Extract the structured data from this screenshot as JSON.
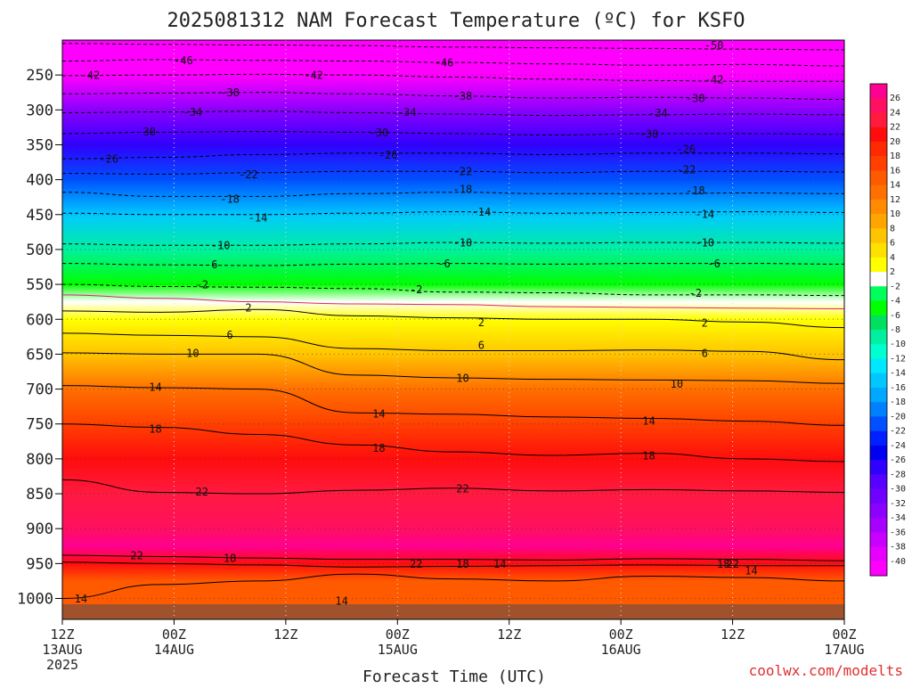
{
  "chart_data": {
    "type": "heatmap",
    "title": "2025081312 NAM Forecast Temperature (ºC) for KSFO",
    "xlabel": "Forecast Time (UTC)",
    "credit": "coolwx.com/modelts",
    "pressure_ticks": [
      250,
      300,
      350,
      400,
      450,
      500,
      550,
      600,
      650,
      700,
      750,
      800,
      850,
      900,
      950,
      1000
    ],
    "pressure_range": [
      200,
      1030
    ],
    "time_range_hours": [
      0,
      84
    ],
    "time_ticks": [
      {
        "hour": 0,
        "l1": "12Z",
        "l2": "13AUG",
        "l3": "2025"
      },
      {
        "hour": 12,
        "l1": "00Z",
        "l2": "14AUG",
        "l3": ""
      },
      {
        "hour": 24,
        "l1": "12Z",
        "l2": "",
        "l3": ""
      },
      {
        "hour": 36,
        "l1": "00Z",
        "l2": "15AUG",
        "l3": ""
      },
      {
        "hour": 48,
        "l1": "12Z",
        "l2": "",
        "l3": ""
      },
      {
        "hour": 60,
        "l1": "00Z",
        "l2": "16AUG",
        "l3": ""
      },
      {
        "hour": 72,
        "l1": "12Z",
        "l2": "",
        "l3": ""
      },
      {
        "hour": 84,
        "l1": "00Z",
        "l2": "17AUG",
        "l3": ""
      }
    ],
    "colorbar_labels": [
      "26",
      "24",
      "22",
      "20",
      "18",
      "16",
      "14",
      "12",
      "10",
      "8",
      "6",
      "4",
      "2",
      "-2",
      "-4",
      "-6",
      "-8",
      "-10",
      "-12",
      "-14",
      "-16",
      "-18",
      "-20",
      "-22",
      "-24",
      "-26",
      "-28",
      "-30",
      "-32",
      "-34",
      "-36",
      "-38",
      "-40"
    ],
    "colorbar_colors": [
      "#ff0090",
      "#ff1060",
      "#ff1a40",
      "#ff0d0d",
      "#ff2a00",
      "#ff4000",
      "#ff5a00",
      "#ff7000",
      "#ff8c00",
      "#ffa500",
      "#ffc400",
      "#ffe000",
      "#ffff00",
      "#ffffff",
      "#00ff5a",
      "#00ff00",
      "#00e060",
      "#00f0a0",
      "#00ffd0",
      "#00e8ff",
      "#00c8ff",
      "#00a8ff",
      "#0080ff",
      "#0050ff",
      "#0020ff",
      "#0000f0",
      "#3000ff",
      "#5800ff",
      "#7000ff",
      "#8c00ff",
      "#a800ff",
      "#c800ff",
      "#e800ff",
      "#ff00ff"
    ],
    "temperature_profile": [
      {
        "p": 200,
        "t": -56
      },
      {
        "p": 250,
        "t": -42
      },
      {
        "p": 300,
        "t": -33
      },
      {
        "p": 350,
        "t": -26
      },
      {
        "p": 400,
        "t": -20
      },
      {
        "p": 450,
        "t": -14
      },
      {
        "p": 500,
        "t": -9
      },
      {
        "p": 550,
        "t": -4
      },
      {
        "p": 575,
        "t": 0
      },
      {
        "p": 600,
        "t": 3
      },
      {
        "p": 650,
        "t": 7
      },
      {
        "p": 700,
        "t": 12
      },
      {
        "p": 750,
        "t": 16
      },
      {
        "p": 800,
        "t": 20
      },
      {
        "p": 850,
        "t": 23
      },
      {
        "p": 900,
        "t": 25
      },
      {
        "p": 925,
        "t": 26
      },
      {
        "p": 950,
        "t": 20
      },
      {
        "p": 975,
        "t": 15
      },
      {
        "p": 1000,
        "t": 14
      }
    ],
    "contours": [
      {
        "label": "-50",
        "dashed": true,
        "p": [
          205,
          206,
          207,
          208,
          210,
          211,
          212,
          213,
          214
        ],
        "labels_at": [
          [
            70,
            207
          ]
        ]
      },
      {
        "label": "-46",
        "dashed": true,
        "p": [
          230,
          228,
          229,
          230,
          232,
          234,
          236,
          235,
          237
        ],
        "labels_at": [
          [
            13,
            229
          ],
          [
            41,
            232
          ]
        ]
      },
      {
        "label": "-42",
        "dashed": true,
        "p": [
          251,
          250,
          249,
          250,
          253,
          256,
          258,
          259,
          259
        ],
        "labels_at": [
          [
            3,
            250
          ],
          [
            27,
            250
          ],
          [
            70,
            256
          ]
        ]
      },
      {
        "label": "-38",
        "dashed": true,
        "p": [
          277,
          276,
          275,
          277,
          280,
          283,
          282,
          283,
          285
        ],
        "labels_at": [
          [
            18,
            275
          ],
          [
            43,
            280
          ],
          [
            68,
            283
          ]
        ]
      },
      {
        "label": "-34",
        "dashed": true,
        "p": [
          304,
          303,
          302,
          304,
          306,
          308,
          307,
          306,
          307
        ],
        "labels_at": [
          [
            14,
            303
          ],
          [
            37,
            303
          ],
          [
            64,
            304
          ]
        ]
      },
      {
        "label": "-30",
        "dashed": true,
        "p": [
          334,
          332,
          331,
          332,
          334,
          336,
          334,
          334,
          335
        ],
        "labels_at": [
          [
            9,
            331
          ],
          [
            34,
            332
          ],
          [
            63,
            334
          ]
        ]
      },
      {
        "label": "-26",
        "dashed": true,
        "p": [
          370,
          368,
          364,
          362,
          362,
          364,
          362,
          362,
          363
        ],
        "labels_at": [
          [
            5,
            370
          ],
          [
            35,
            364
          ],
          [
            67,
            356
          ]
        ]
      },
      {
        "label": "-22",
        "dashed": true,
        "p": [
          391,
          392,
          390,
          388,
          388,
          390,
          388,
          388,
          389
        ],
        "labels_at": [
          [
            20,
            392
          ],
          [
            43,
            388
          ],
          [
            67,
            385
          ]
        ]
      },
      {
        "label": "-18",
        "dashed": true,
        "p": [
          418,
          424,
          424,
          420,
          418,
          420,
          420,
          419,
          420
        ],
        "labels_at": [
          [
            18,
            427
          ],
          [
            43,
            413
          ],
          [
            68,
            415
          ]
        ]
      },
      {
        "label": "-14",
        "dashed": true,
        "p": [
          448,
          450,
          450,
          448,
          446,
          448,
          447,
          446,
          447
        ],
        "labels_at": [
          [
            21,
            454
          ],
          [
            45,
            446
          ],
          [
            69,
            449
          ]
        ]
      },
      {
        "label": "-10",
        "dashed": true,
        "p": [
          492,
          494,
          494,
          492,
          490,
          491,
          490,
          490,
          491
        ],
        "labels_at": [
          [
            17,
            494
          ],
          [
            43,
            490
          ],
          [
            69,
            490
          ]
        ]
      },
      {
        "label": "-6",
        "dashed": true,
        "p": [
          520,
          522,
          523,
          521,
          520,
          521,
          520,
          520,
          521
        ],
        "labels_at": [
          [
            16,
            521
          ],
          [
            41,
            520
          ],
          [
            70,
            520
          ]
        ]
      },
      {
        "label": "-2",
        "dashed": true,
        "p": [
          550,
          553,
          554,
          556,
          561,
          562,
          565,
          565,
          566
        ],
        "labels_at": [
          [
            15,
            550
          ],
          [
            38,
            557
          ],
          [
            68,
            562
          ]
        ]
      },
      {
        "label": "0",
        "dashed": false,
        "color": "#e0207a",
        "p": [
          565,
          570,
          575,
          578,
          579,
          582,
          583,
          584,
          585
        ],
        "labels_at": []
      },
      {
        "label": "2",
        "dashed": false,
        "p": [
          588,
          590,
          586,
          595,
          598,
          600,
          600,
          604,
          612
        ],
        "labels_at": [
          [
            20,
            583
          ],
          [
            45,
            604
          ],
          [
            69,
            605
          ]
        ]
      },
      {
        "label": "6",
        "dashed": false,
        "p": [
          620,
          623,
          625,
          642,
          645,
          645,
          644,
          646,
          658
        ],
        "labels_at": [
          [
            18,
            622
          ],
          [
            45,
            637
          ],
          [
            69,
            648
          ]
        ]
      },
      {
        "label": "10",
        "dashed": false,
        "p": [
          648,
          650,
          650,
          680,
          684,
          686,
          687,
          688,
          692
        ],
        "labels_at": [
          [
            14,
            648
          ],
          [
            43,
            684
          ],
          [
            66,
            692
          ]
        ]
      },
      {
        "label": "14",
        "dashed": false,
        "p": [
          695,
          698,
          700,
          734,
          736,
          740,
          742,
          746,
          752
        ],
        "labels_at": [
          [
            10,
            697
          ],
          [
            34,
            735
          ],
          [
            63,
            745
          ]
        ]
      },
      {
        "label": "18",
        "dashed": false,
        "p": [
          750,
          755,
          765,
          780,
          790,
          795,
          792,
          800,
          804
        ],
        "labels_at": [
          [
            10,
            757
          ],
          [
            34,
            784
          ],
          [
            63,
            795
          ]
        ]
      },
      {
        "label": "22",
        "dashed": false,
        "p": [
          830,
          848,
          850,
          845,
          842,
          846,
          844,
          846,
          848
        ],
        "labels_at": [
          [
            15,
            847
          ],
          [
            43,
            842
          ]
        ]
      },
      {
        "label": "22",
        "dashed": false,
        "p": [
          938,
          940,
          942,
          944,
          944,
          945,
          943,
          944,
          946
        ],
        "labels_at": [
          [
            8,
            938
          ],
          [
            38,
            950
          ],
          [
            72,
            950
          ]
        ]
      },
      {
        "label": "18",
        "dashed": false,
        "p": [
          948,
          950,
          952,
          955,
          954,
          953,
          952,
          953,
          953
        ],
        "labels_at": [
          [
            18,
            942
          ],
          [
            43,
            950
          ],
          [
            71,
            950
          ]
        ]
      },
      {
        "label": "14",
        "dashed": false,
        "p": [
          1000,
          980,
          975,
          965,
          972,
          975,
          968,
          970,
          975
        ],
        "labels_at": [
          [
            2,
            1000
          ],
          [
            30,
            1003
          ],
          [
            47,
            950
          ],
          [
            74,
            960
          ]
        ]
      }
    ]
  }
}
